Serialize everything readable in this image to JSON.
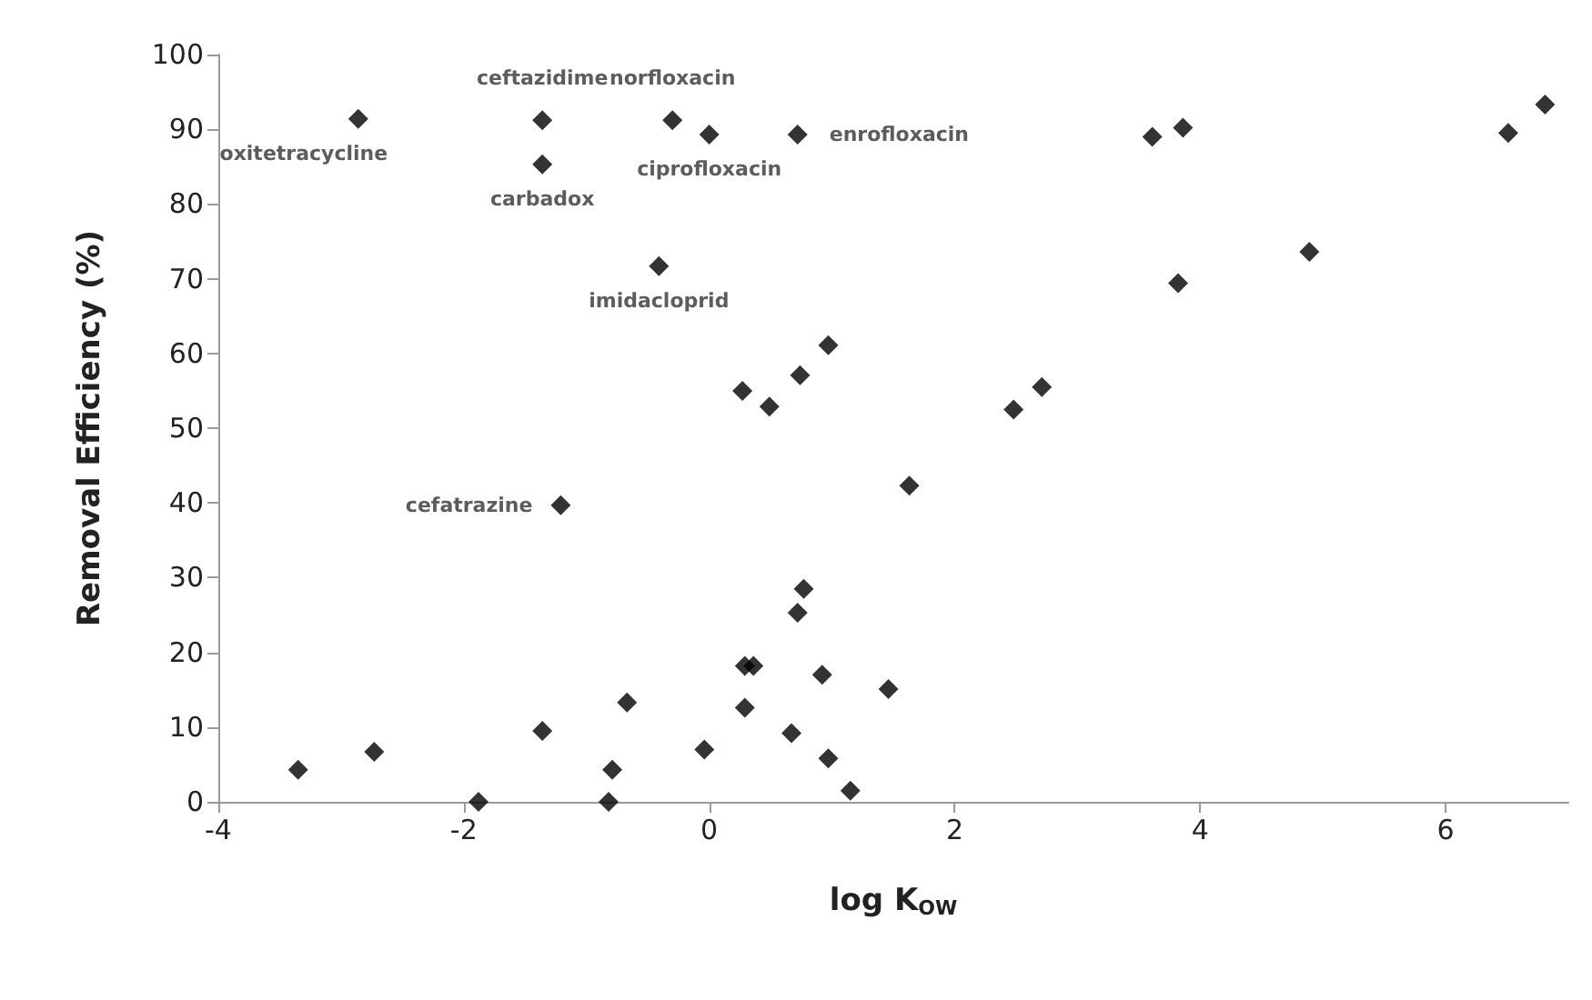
{
  "chart_data": {
    "type": "scatter",
    "xlabel": "log K$_{OW}$",
    "ylabel": "Removal Efficiency (%)",
    "x": [
      -2.86,
      -1.36,
      -1.36,
      -0.3,
      0.0,
      0.72,
      3.61,
      3.86,
      6.51,
      6.81,
      -0.41,
      4.89,
      3.82,
      0.97,
      0.74,
      0.27,
      0.49,
      2.71,
      2.48,
      1.63,
      -1.21,
      0.77,
      0.72,
      0.29,
      0.36,
      0.92,
      1.46,
      0.29,
      -0.67,
      -1.36,
      0.67,
      -0.04,
      -2.73,
      -3.35,
      -0.79,
      0.97,
      1.15,
      -1.88,
      -0.82
    ],
    "values": [
      91.4,
      91.2,
      85.3,
      91.2,
      89.3,
      89.3,
      89.0,
      90.2,
      89.5,
      93.3,
      71.7,
      73.6,
      69.4,
      61.1,
      57.1,
      55.0,
      52.9,
      55.5,
      52.5,
      42.3,
      39.7,
      28.5,
      25.3,
      18.2,
      18.2,
      17.0,
      15.1,
      12.6,
      13.3,
      9.5,
      9.2,
      7.0,
      6.7,
      4.3,
      4.3,
      5.8,
      1.5,
      0,
      0
    ],
    "color": "#000000",
    "marker": "diamond",
    "grid": false,
    "xlim": [
      -4,
      7
    ],
    "xticks": [
      -4,
      -2,
      0,
      2,
      4,
      6
    ],
    "ylim": [
      0,
      100
    ],
    "yticks": [
      0,
      10,
      20,
      30,
      40,
      50,
      60,
      70,
      80,
      90,
      100
    ],
    "annotations": [
      {
        "text": "oxitetracycline",
        "x": -2.86,
        "y": 91.4
      },
      {
        "text": "ceftazidime",
        "x": -1.36,
        "y": 91.2
      },
      {
        "text": "carbadox",
        "x": -1.36,
        "y": 85.3
      },
      {
        "text": "norfloxacin",
        "x": -0.3,
        "y": 91.2
      },
      {
        "text": "ciprofloxacin",
        "x": 0.0,
        "y": 89.3
      },
      {
        "text": "enrofloxacin",
        "x": 0.72,
        "y": 89.3
      },
      {
        "text": "imidacloprid",
        "x": -0.41,
        "y": 71.7
      },
      {
        "text": "cefatrazine",
        "x": -1.21,
        "y": 39.7
      }
    ]
  }
}
